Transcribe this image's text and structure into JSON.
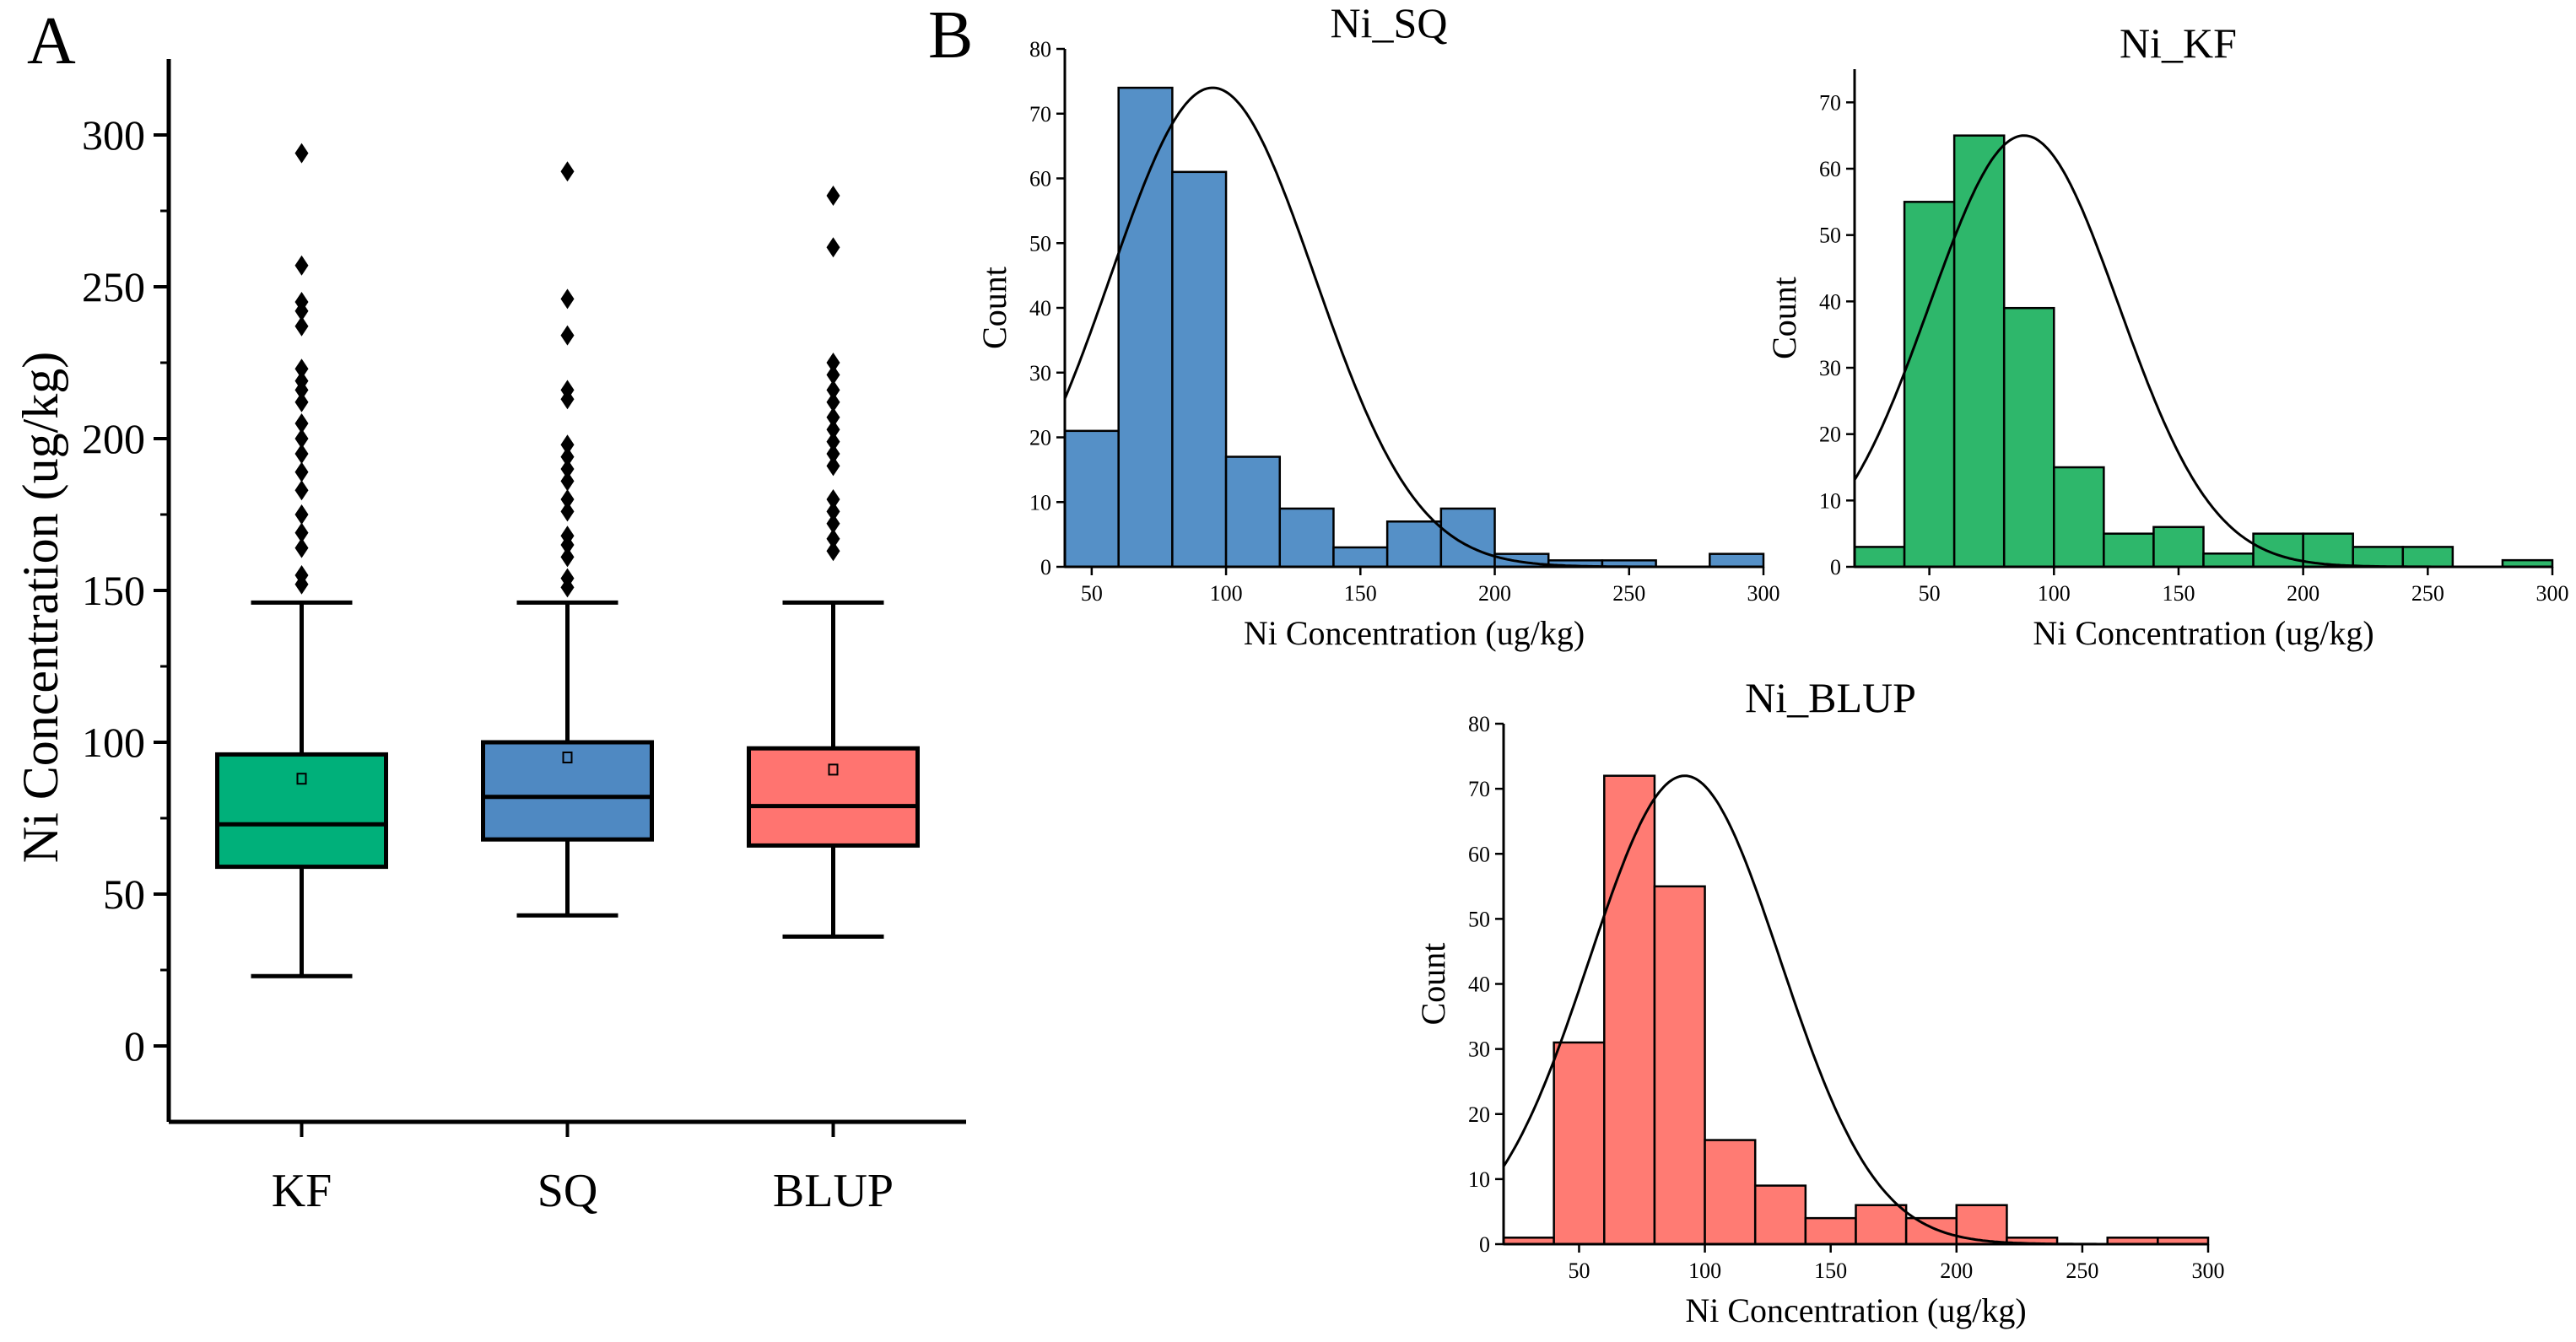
{
  "panel_labels": {
    "a": "A",
    "b": "B"
  },
  "chart_data": [
    {
      "id": "boxplot",
      "type": "box",
      "panel": "A",
      "title": "",
      "xlabel": "",
      "ylabel": "Ni Concentration (ug/kg)",
      "ylim": [
        -25,
        325
      ],
      "yticks": [
        0,
        50,
        100,
        150,
        200,
        250,
        300
      ],
      "categories": [
        "KF",
        "SQ",
        "BLUP"
      ],
      "colors": [
        "#00b07a",
        "#4f89c2",
        "#ff7470"
      ],
      "boxes": [
        {
          "name": "KF",
          "q1": 59,
          "median": 73,
          "q3": 96,
          "mean": 88,
          "whisker_low": 23,
          "whisker_high": 146,
          "outliers": [
            294,
            257,
            245,
            242,
            237,
            223,
            219,
            216,
            212,
            205,
            200,
            195,
            189,
            183,
            175,
            169,
            164,
            155,
            152
          ]
        },
        {
          "name": "SQ",
          "q1": 68,
          "median": 82,
          "q3": 100,
          "mean": 95,
          "whisker_low": 43,
          "whisker_high": 146,
          "outliers": [
            288,
            246,
            234,
            216,
            213,
            198,
            194,
            190,
            186,
            180,
            176,
            168,
            165,
            161,
            154,
            151
          ]
        },
        {
          "name": "BLUP",
          "q1": 66,
          "median": 79,
          "q3": 98,
          "mean": 91,
          "whisker_low": 36,
          "whisker_high": 146,
          "outliers": [
            280,
            263,
            225,
            221,
            216,
            212,
            207,
            203,
            199,
            195,
            191,
            180,
            176,
            172,
            167,
            163
          ]
        }
      ]
    },
    {
      "id": "hist_sq",
      "type": "histogram",
      "panel": "B",
      "title": "Ni_SQ",
      "xlabel": "Ni Concentration (ug/kg)",
      "ylabel": "Count",
      "color": "#5590c7",
      "xlim": [
        40,
        300
      ],
      "ylim": [
        0,
        80
      ],
      "xticks": [
        50,
        100,
        150,
        200,
        250,
        300
      ],
      "yticks": [
        0,
        10,
        20,
        30,
        40,
        50,
        60,
        70,
        80
      ],
      "bin_edges": [
        40,
        60,
        80,
        100,
        120,
        140,
        160,
        180,
        200,
        220,
        240,
        260,
        280,
        300
      ],
      "counts": [
        21,
        74,
        61,
        17,
        9,
        3,
        7,
        9,
        2,
        1,
        1,
        0,
        2
      ],
      "normal_fit": {
        "mean": 95,
        "sd": 38,
        "peak": 74
      }
    },
    {
      "id": "hist_kf",
      "type": "histogram",
      "panel": "B",
      "title": "Ni_KF",
      "xlabel": "Ni Concentration (ug/kg)",
      "ylabel": "Count",
      "color": "#2eb76b",
      "xlim": [
        20,
        300
      ],
      "ylim": [
        0,
        75
      ],
      "xticks": [
        50,
        100,
        150,
        200,
        250,
        300
      ],
      "yticks": [
        0,
        10,
        20,
        30,
        40,
        50,
        60,
        70
      ],
      "bin_edges": [
        20,
        40,
        60,
        80,
        100,
        120,
        140,
        160,
        180,
        200,
        220,
        240,
        260,
        280,
        300
      ],
      "counts": [
        3,
        55,
        65,
        39,
        15,
        5,
        6,
        2,
        5,
        5,
        3,
        3,
        0,
        1
      ],
      "normal_fit": {
        "mean": 88,
        "sd": 38,
        "peak": 65
      }
    },
    {
      "id": "hist_blup",
      "type": "histogram",
      "panel": "B",
      "title": "Ni_BLUP",
      "xlabel": "Ni Concentration (ug/kg)",
      "ylabel": "Count",
      "color": "#ff7b73",
      "xlim": [
        20,
        300
      ],
      "ylim": [
        0,
        80
      ],
      "xticks": [
        50,
        100,
        150,
        200,
        250,
        300
      ],
      "yticks": [
        0,
        10,
        20,
        30,
        40,
        50,
        60,
        70,
        80
      ],
      "bin_edges": [
        20,
        40,
        60,
        80,
        100,
        120,
        140,
        160,
        180,
        200,
        220,
        240,
        260,
        280,
        300
      ],
      "counts": [
        1,
        31,
        72,
        55,
        16,
        9,
        4,
        6,
        4,
        6,
        1,
        0,
        1,
        1
      ],
      "normal_fit": {
        "mean": 92,
        "sd": 38,
        "peak": 72
      }
    }
  ]
}
